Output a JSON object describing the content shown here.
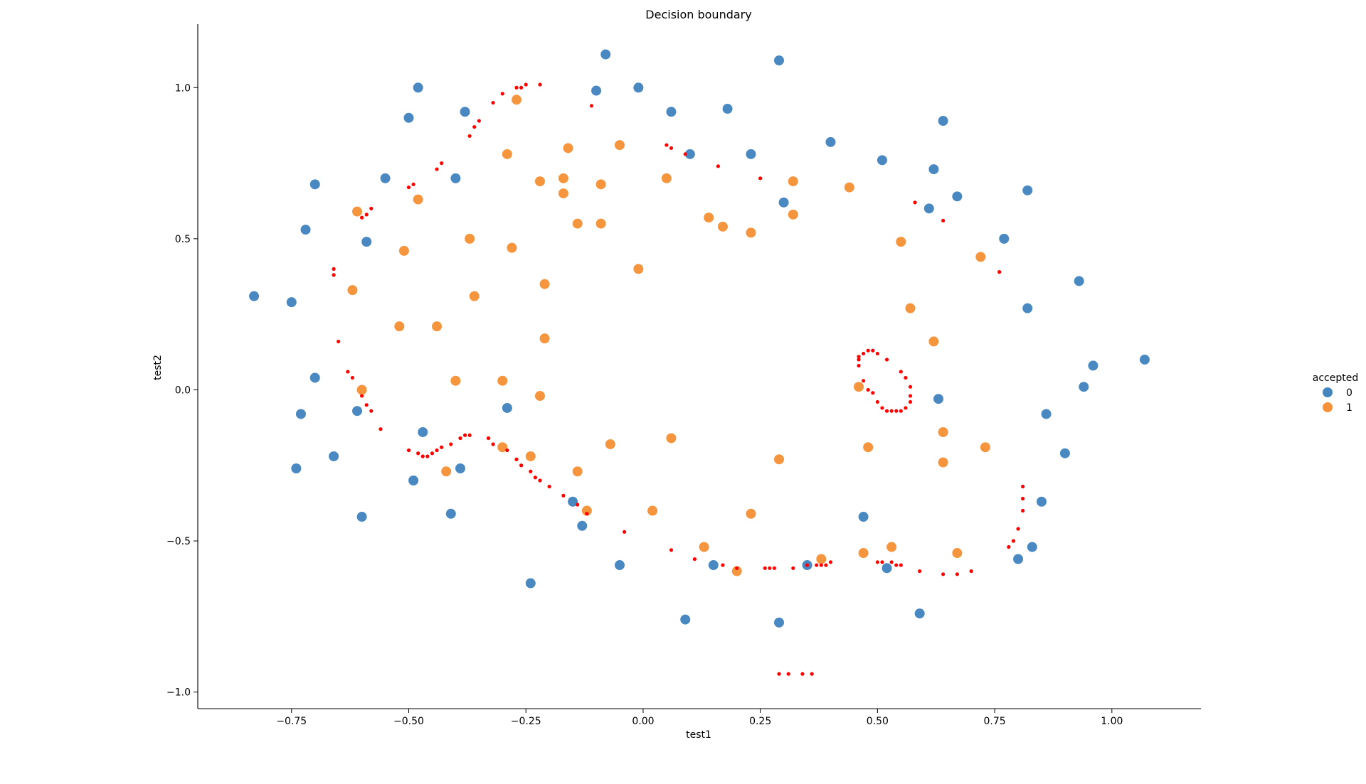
{
  "chart_data": {
    "type": "scatter",
    "title": "Decision boundary",
    "xlabel": "test1",
    "ylabel": "test2",
    "xlim": [
      -0.95,
      1.19
    ],
    "ylim": [
      -1.055,
      1.21
    ],
    "xticks": [
      -0.75,
      -0.5,
      -0.25,
      0.0,
      0.25,
      0.5,
      0.75,
      1.0
    ],
    "xtick_labels": [
      "−0.75",
      "−0.50",
      "−0.25",
      "0.00",
      "0.25",
      "0.50",
      "0.75",
      "1.00"
    ],
    "yticks": [
      -1.0,
      -0.5,
      0.0,
      0.5,
      1.0
    ],
    "ytick_labels": [
      "−1.0",
      "−0.5",
      "0.0",
      "0.5",
      "1.0"
    ],
    "grid": false,
    "legend": {
      "title": "accepted",
      "placement": "right",
      "entries": [
        "0",
        "1"
      ]
    },
    "colors": {
      "0": "#3a7ebb",
      "1": "#f48c2e",
      "boundary": "#ff0000"
    },
    "series": [
      {
        "name": "0",
        "points": [
          [
            -0.83,
            0.31
          ],
          [
            -0.75,
            0.29
          ],
          [
            -0.72,
            0.53
          ],
          [
            -0.7,
            0.68
          ],
          [
            -0.7,
            0.04
          ],
          [
            -0.73,
            -0.08
          ],
          [
            -0.74,
            -0.26
          ],
          [
            -0.66,
            -0.22
          ],
          [
            -0.61,
            -0.07
          ],
          [
            -0.6,
            -0.42
          ],
          [
            -0.59,
            0.49
          ],
          [
            -0.55,
            0.7
          ],
          [
            -0.5,
            0.9
          ],
          [
            -0.48,
            1.0
          ],
          [
            -0.47,
            -0.14
          ],
          [
            -0.49,
            -0.3
          ],
          [
            -0.41,
            -0.41
          ],
          [
            -0.39,
            -0.26
          ],
          [
            -0.38,
            0.92
          ],
          [
            -0.4,
            0.7
          ],
          [
            -0.29,
            -0.06
          ],
          [
            -0.24,
            -0.64
          ],
          [
            -0.15,
            -0.37
          ],
          [
            -0.13,
            -0.45
          ],
          [
            -0.1,
            0.99
          ],
          [
            -0.08,
            1.11
          ],
          [
            -0.05,
            -0.58
          ],
          [
            -0.01,
            1.0
          ],
          [
            0.06,
            0.92
          ],
          [
            0.1,
            0.78
          ],
          [
            0.09,
            -0.76
          ],
          [
            0.15,
            -0.58
          ],
          [
            0.18,
            0.93
          ],
          [
            0.23,
            0.78
          ],
          [
            0.29,
            1.09
          ],
          [
            0.29,
            -0.77
          ],
          [
            0.3,
            0.62
          ],
          [
            0.35,
            -0.58
          ],
          [
            0.4,
            0.82
          ],
          [
            0.47,
            -0.42
          ],
          [
            0.51,
            0.76
          ],
          [
            0.52,
            -0.59
          ],
          [
            0.59,
            -0.74
          ],
          [
            0.61,
            0.6
          ],
          [
            0.62,
            0.73
          ],
          [
            0.63,
            -0.03
          ],
          [
            0.64,
            0.89
          ],
          [
            0.67,
            0.64
          ],
          [
            0.77,
            0.5
          ],
          [
            0.8,
            -0.56
          ],
          [
            0.82,
            0.66
          ],
          [
            0.82,
            0.27
          ],
          [
            0.83,
            -0.52
          ],
          [
            0.85,
            -0.37
          ],
          [
            0.86,
            -0.08
          ],
          [
            0.9,
            -0.21
          ],
          [
            0.93,
            0.36
          ],
          [
            0.94,
            0.01
          ],
          [
            0.96,
            0.08
          ],
          [
            1.07,
            0.1
          ]
        ]
      },
      {
        "name": "1",
        "points": [
          [
            -0.62,
            0.33
          ],
          [
            -0.61,
            0.59
          ],
          [
            -0.6,
            0.0
          ],
          [
            -0.52,
            0.21
          ],
          [
            -0.51,
            0.46
          ],
          [
            -0.48,
            0.63
          ],
          [
            -0.44,
            0.21
          ],
          [
            -0.42,
            -0.27
          ],
          [
            -0.4,
            0.03
          ],
          [
            -0.37,
            0.5
          ],
          [
            -0.36,
            0.31
          ],
          [
            -0.3,
            0.03
          ],
          [
            -0.3,
            -0.19
          ],
          [
            -0.29,
            0.78
          ],
          [
            -0.28,
            0.47
          ],
          [
            -0.27,
            0.96
          ],
          [
            -0.24,
            -0.22
          ],
          [
            -0.22,
            0.69
          ],
          [
            -0.22,
            -0.02
          ],
          [
            -0.21,
            0.35
          ],
          [
            -0.21,
            0.17
          ],
          [
            -0.17,
            0.7
          ],
          [
            -0.17,
            0.65
          ],
          [
            -0.16,
            0.8
          ],
          [
            -0.14,
            0.55
          ],
          [
            -0.14,
            -0.27
          ],
          [
            -0.12,
            -0.4
          ],
          [
            -0.09,
            0.68
          ],
          [
            -0.09,
            0.55
          ],
          [
            -0.07,
            -0.18
          ],
          [
            -0.05,
            0.81
          ],
          [
            -0.01,
            0.4
          ],
          [
            0.02,
            -0.4
          ],
          [
            0.05,
            0.7
          ],
          [
            0.06,
            -0.16
          ],
          [
            0.13,
            -0.52
          ],
          [
            0.14,
            0.57
          ],
          [
            0.17,
            0.54
          ],
          [
            0.2,
            -0.6
          ],
          [
            0.23,
            0.52
          ],
          [
            0.23,
            -0.41
          ],
          [
            0.29,
            -0.23
          ],
          [
            0.32,
            0.69
          ],
          [
            0.32,
            0.58
          ],
          [
            0.38,
            -0.56
          ],
          [
            0.44,
            0.67
          ],
          [
            0.46,
            0.01
          ],
          [
            0.47,
            -0.54
          ],
          [
            0.48,
            -0.19
          ],
          [
            0.53,
            -0.52
          ],
          [
            0.55,
            0.49
          ],
          [
            0.57,
            0.27
          ],
          [
            0.62,
            0.16
          ],
          [
            0.64,
            -0.24
          ],
          [
            0.64,
            -0.14
          ],
          [
            0.67,
            -0.54
          ],
          [
            0.72,
            0.44
          ],
          [
            0.73,
            -0.19
          ]
        ]
      },
      {
        "name": "boundary",
        "points": [
          [
            -0.22,
            1.01
          ],
          [
            -0.25,
            1.01
          ],
          [
            -0.27,
            1.0
          ],
          [
            -0.26,
            1.0
          ],
          [
            -0.3,
            0.98
          ],
          [
            -0.32,
            0.95
          ],
          [
            -0.35,
            0.89
          ],
          [
            -0.36,
            0.87
          ],
          [
            -0.37,
            0.84
          ],
          [
            -0.43,
            0.75
          ],
          [
            -0.44,
            0.73
          ],
          [
            -0.49,
            0.68
          ],
          [
            -0.5,
            0.67
          ],
          [
            -0.58,
            0.6
          ],
          [
            -0.59,
            0.58
          ],
          [
            -0.6,
            0.57
          ],
          [
            -0.66,
            0.4
          ],
          [
            -0.66,
            0.38
          ],
          [
            -0.65,
            0.16
          ],
          [
            -0.63,
            0.06
          ],
          [
            -0.62,
            0.04
          ],
          [
            -0.6,
            -0.02
          ],
          [
            -0.59,
            -0.05
          ],
          [
            -0.58,
            -0.07
          ],
          [
            -0.56,
            -0.13
          ],
          [
            -0.5,
            -0.2
          ],
          [
            -0.48,
            -0.21
          ],
          [
            -0.47,
            -0.22
          ],
          [
            -0.46,
            -0.22
          ],
          [
            -0.45,
            -0.21
          ],
          [
            -0.44,
            -0.2
          ],
          [
            -0.43,
            -0.19
          ],
          [
            -0.41,
            -0.18
          ],
          [
            -0.39,
            -0.16
          ],
          [
            -0.38,
            -0.15
          ],
          [
            -0.37,
            -0.15
          ],
          [
            -0.33,
            -0.16
          ],
          [
            -0.32,
            -0.18
          ],
          [
            -0.29,
            -0.2
          ],
          [
            -0.27,
            -0.23
          ],
          [
            -0.26,
            -0.25
          ],
          [
            -0.24,
            -0.27
          ],
          [
            -0.23,
            -0.29
          ],
          [
            -0.22,
            -0.3
          ],
          [
            -0.2,
            -0.32
          ],
          [
            -0.17,
            -0.35
          ],
          [
            -0.14,
            -0.38
          ],
          [
            -0.12,
            -0.41
          ],
          [
            -0.04,
            -0.47
          ],
          [
            0.06,
            -0.53
          ],
          [
            0.11,
            -0.56
          ],
          [
            0.17,
            -0.58
          ],
          [
            0.2,
            -0.59
          ],
          [
            0.26,
            -0.59
          ],
          [
            0.27,
            -0.59
          ],
          [
            0.28,
            -0.59
          ],
          [
            0.32,
            -0.59
          ],
          [
            0.35,
            -0.58
          ],
          [
            0.37,
            -0.58
          ],
          [
            0.38,
            -0.58
          ],
          [
            0.39,
            -0.58
          ],
          [
            0.4,
            -0.57
          ],
          [
            0.5,
            -0.57
          ],
          [
            0.51,
            -0.57
          ],
          [
            0.53,
            -0.57
          ],
          [
            0.54,
            -0.58
          ],
          [
            0.55,
            -0.58
          ],
          [
            0.59,
            -0.6
          ],
          [
            0.64,
            -0.61
          ],
          [
            0.67,
            -0.61
          ],
          [
            0.7,
            -0.6
          ],
          [
            0.78,
            -0.52
          ],
          [
            0.79,
            -0.5
          ],
          [
            0.8,
            -0.46
          ],
          [
            0.81,
            -0.4
          ],
          [
            0.81,
            -0.36
          ],
          [
            0.81,
            -0.32
          ],
          [
            0.29,
            -0.94
          ],
          [
            0.31,
            -0.94
          ],
          [
            0.34,
            -0.94
          ],
          [
            0.36,
            -0.94
          ],
          [
            0.05,
            0.81
          ],
          [
            0.06,
            0.8
          ],
          [
            0.09,
            0.78
          ],
          [
            0.16,
            0.74
          ],
          [
            0.25,
            0.7
          ],
          [
            0.58,
            0.62
          ],
          [
            0.64,
            0.56
          ],
          [
            0.76,
            0.39
          ],
          [
            -0.11,
            0.94
          ],
          [
            0.46,
            0.11
          ],
          [
            0.47,
            0.12
          ],
          [
            0.48,
            0.13
          ],
          [
            0.49,
            0.13
          ],
          [
            0.5,
            0.12
          ],
          [
            0.52,
            0.1
          ],
          [
            0.55,
            0.06
          ],
          [
            0.56,
            0.04
          ],
          [
            0.57,
            0.01
          ],
          [
            0.57,
            -0.02
          ],
          [
            0.57,
            -0.04
          ],
          [
            0.56,
            -0.06
          ],
          [
            0.55,
            -0.07
          ],
          [
            0.54,
            -0.07
          ],
          [
            0.53,
            -0.07
          ],
          [
            0.52,
            -0.07
          ],
          [
            0.51,
            -0.06
          ],
          [
            0.5,
            -0.04
          ],
          [
            0.49,
            -0.01
          ],
          [
            0.48,
            0.0
          ],
          [
            0.47,
            0.03
          ],
          [
            0.46,
            0.08
          ],
          [
            0.46,
            0.1
          ]
        ]
      }
    ]
  }
}
